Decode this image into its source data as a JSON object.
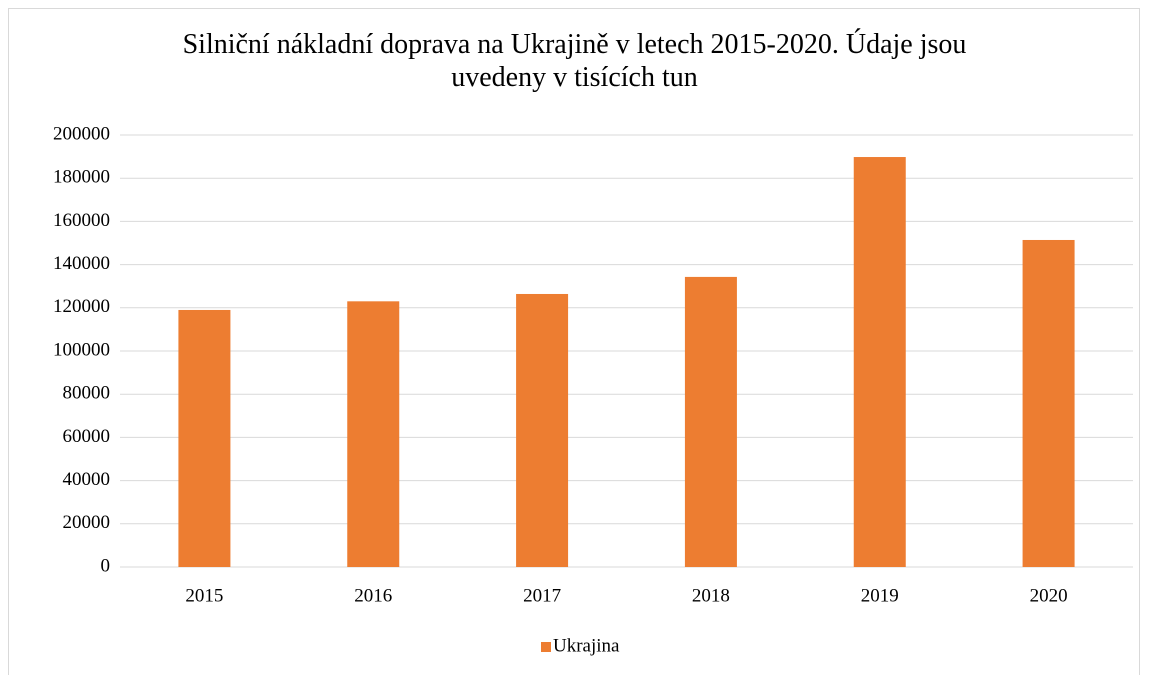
{
  "chart_data": {
    "type": "bar",
    "title": "Silniční nákladní doprava na Ukrajině v letech 2015-2020. Údaje jsou\nuvedeny v tisících tun",
    "categories": [
      "2015",
      "2016",
      "2017",
      "2018",
      "2019",
      "2020"
    ],
    "series": [
      {
        "name": "Ukrajina",
        "color": "#ed7d31",
        "values": [
          119000,
          123000,
          126400,
          134300,
          189800,
          151400
        ]
      }
    ],
    "ylim": [
      0,
      200000
    ],
    "yticks": [
      0,
      20000,
      40000,
      60000,
      80000,
      100000,
      120000,
      140000,
      160000,
      180000,
      200000
    ],
    "grid": true,
    "legend": "bottom"
  }
}
